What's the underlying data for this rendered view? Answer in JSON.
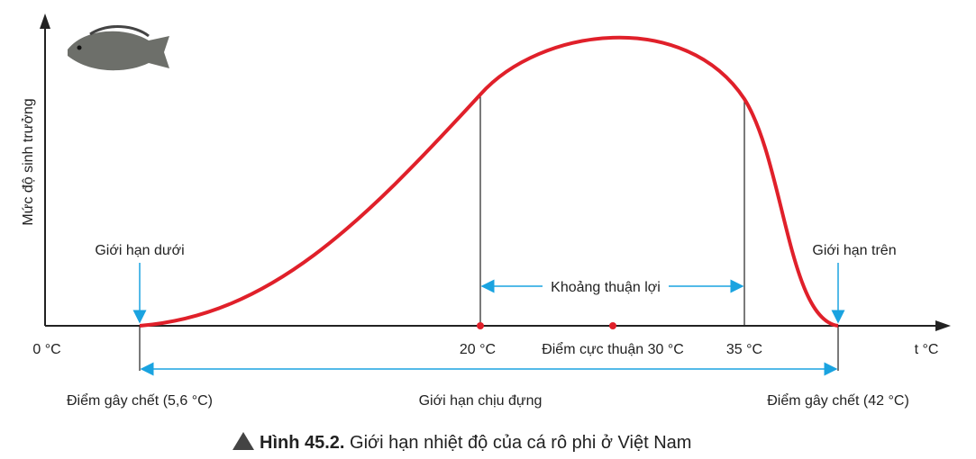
{
  "axes": {
    "y_label": "Mức độ sinh trưởng",
    "x_label": "t °C",
    "origin": "0 °C"
  },
  "ticks": {
    "t20": "20 °C",
    "t30": "Điểm cực thuận 30 °C",
    "t35": "35 °C"
  },
  "annotations": {
    "lower_limit": "Giới hạn dưới",
    "upper_limit": "Giới hạn trên",
    "favorable_range": "Khoảng thuận lợi",
    "lower_lethal": "Điểm gây chết (5,6 °C)",
    "tolerance_range": "Giới hạn chịu đựng",
    "upper_lethal": "Điểm gây chết (42 °C)"
  },
  "caption": {
    "label": "Hình 45.2.",
    "text": "Giới hạn nhiệt độ của cá rô phi ở Việt Nam"
  }
}
